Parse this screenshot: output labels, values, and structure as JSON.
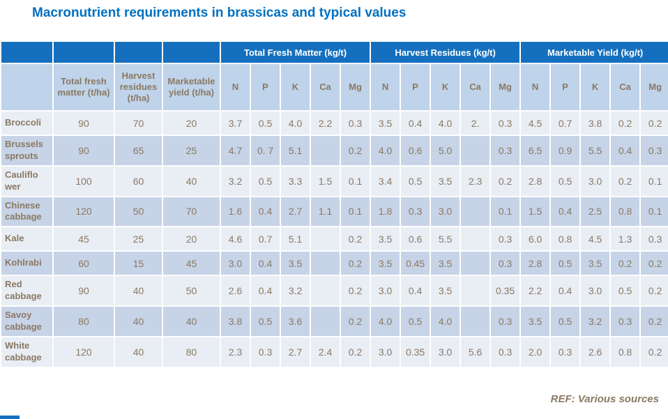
{
  "title": "Macronutrient requirements in brassicas and typical values",
  "footer": {
    "ref": "REF: Various sources"
  },
  "colors": {
    "title_text": "#0070C0",
    "group_header_bg": "#1470BE",
    "group_header_text": "#FFFFFF",
    "subheader_bg": "#BFD3EA",
    "row_light_bg": "#E9EDF4",
    "row_dark_bg": "#C7D3E7",
    "cell_text": "#8A7963"
  },
  "table": {
    "group_headers": [
      {
        "label": "Total Fresh Matter (kg/t)"
      },
      {
        "label": "Harvest Residues (kg/t)"
      },
      {
        "label": "Marketable Yield (kg/t)"
      }
    ],
    "column_headers": [
      "Total fresh matter (t/ha)",
      "Harvest residues (t/ha)",
      "Marketable yield (t/ha)",
      "N",
      "P",
      "K",
      "Ca",
      "Mg",
      "N",
      "P",
      "K",
      "Ca",
      "Mg",
      "N",
      "P",
      "K",
      "Ca",
      "Mg"
    ],
    "rows": [
      {
        "label": "Broccoli",
        "values": [
          "90",
          "70",
          "20",
          "3.7",
          "0.5",
          "4.0",
          "2.2",
          "0.3",
          "3.5",
          "0.4",
          "4.0",
          "2.",
          "0.3",
          "4.5",
          "0.7",
          "3.8",
          "0.2",
          "0.2"
        ]
      },
      {
        "label": "Brussels sprouts",
        "values": [
          "90",
          "65",
          "25",
          "4.7",
          "0. 7",
          "5.1",
          "",
          "0.2",
          "4.0",
          "0.6",
          "5.0",
          "",
          "0.3",
          "6.5",
          "0.9",
          "5.5",
          "0.4",
          "0.3"
        ]
      },
      {
        "label": "Cauliflo wer",
        "values": [
          "100",
          "60",
          "40",
          "3.2",
          "0.5",
          "3.3",
          "1.5",
          "0.1",
          "3.4",
          "0.5",
          "3.5",
          "2.3",
          "0.2",
          "2.8",
          "0.5",
          "3.0",
          "0.2",
          "0.1"
        ]
      },
      {
        "label": "Chinese cabbage",
        "values": [
          "120",
          "50",
          "70",
          "1.6",
          "0.4",
          "2.7",
          "1.1",
          "0.1",
          "1.8",
          "0.3",
          "3.0",
          "",
          "0.1",
          "1.5",
          "0.4",
          "2.5",
          "0.8",
          "0.1"
        ]
      },
      {
        "label": "Kale",
        "values": [
          "45",
          "25",
          "20",
          "4.6",
          "0.7",
          "5.1",
          "",
          "0.2",
          "3.5",
          "0.6",
          "5.5",
          "",
          "0.3",
          "6.0",
          "0.8",
          "4.5",
          "1.3",
          "0.3"
        ]
      },
      {
        "label": "Kohlrabi",
        "values": [
          "60",
          "15",
          "45",
          "3.0",
          "0.4",
          "3.5",
          "",
          "0.2",
          "3.5",
          "0.45",
          "3.5",
          "",
          "0.3",
          "2.8",
          "0.5",
          "3.5",
          "0.2",
          "0.2"
        ]
      },
      {
        "label": "Red cabbage",
        "values": [
          "90",
          "40",
          "50",
          "2.6",
          "0.4",
          "3.2",
          "",
          "0.2",
          "3.0",
          "0.4",
          "3.5",
          "",
          "0.35",
          "2.2",
          "0.4",
          "3.0",
          "0.5",
          "0.2"
        ]
      },
      {
        "label": "Savoy cabbage",
        "values": [
          "80",
          "40",
          "40",
          "3.8",
          "0.5",
          "3.6",
          "",
          "0.2",
          "4.0",
          "0.5",
          "4.0",
          "",
          "0.3",
          "3.5",
          "0.5",
          "3.2",
          "0.3",
          "0.2"
        ]
      },
      {
        "label": "White cabbage",
        "values": [
          "120",
          "40",
          "80",
          "2.3",
          "0.3",
          "2.7",
          "2.4",
          "0.2",
          "3.0",
          "0.35",
          "3.0",
          "5.6",
          "0.3",
          "2.0",
          "0.3",
          "2.6",
          "0.8",
          "0.2"
        ]
      }
    ]
  }
}
